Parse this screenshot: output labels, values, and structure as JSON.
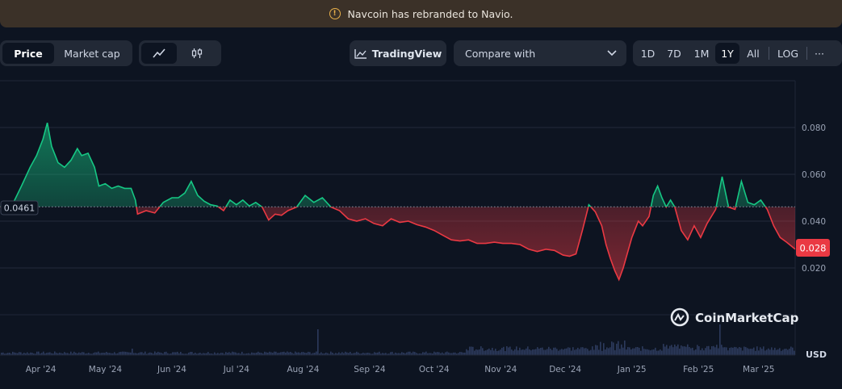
{
  "banner": {
    "text": "Navcoin has rebranded to Navio."
  },
  "toolbar": {
    "price_label": "Price",
    "marketcap_label": "Market cap",
    "tradingview_label": "TradingView",
    "compare_label": "Compare with",
    "ranges": [
      "1D",
      "7D",
      "1M",
      "1Y",
      "All"
    ],
    "active_range": "1Y",
    "log_label": "LOG",
    "more_label": "···"
  },
  "brand": {
    "watermark": "CoinMarketCap"
  },
  "colors": {
    "up": "#16c784",
    "down": "#ea3943",
    "background": "#0d1421",
    "volume": "#2c3a5c"
  },
  "chart_data": {
    "type": "line",
    "baseline": 0.0461,
    "baseline_label": "0.0461",
    "current": 0.028,
    "current_label": "0.028",
    "currency_label": "USD",
    "ylim": [
      0,
      0.1
    ],
    "yticks": [
      {
        "value": 0.02,
        "label": "0.020"
      },
      {
        "value": 0.04,
        "label": "0.040"
      },
      {
        "value": 0.06,
        "label": "0.060"
      },
      {
        "value": 0.08,
        "label": "0.080"
      }
    ],
    "xlim": [
      "2024-03-13",
      "2025-03-18"
    ],
    "xticks": [
      {
        "date": "2024-04-01",
        "label": "Apr '24"
      },
      {
        "date": "2024-05-01",
        "label": "May '24"
      },
      {
        "date": "2024-06-01",
        "label": "Jun '24"
      },
      {
        "date": "2024-07-01",
        "label": "Jul '24"
      },
      {
        "date": "2024-08-01",
        "label": "Aug '24"
      },
      {
        "date": "2024-09-01",
        "label": "Sep '24"
      },
      {
        "date": "2024-10-01",
        "label": "Oct '24"
      },
      {
        "date": "2024-11-01",
        "label": "Nov '24"
      },
      {
        "date": "2024-12-01",
        "label": "Dec '24"
      },
      {
        "date": "2025-01-01",
        "label": "Jan '25"
      },
      {
        "date": "2025-02-01",
        "label": "Feb '25"
      },
      {
        "date": "2025-03-01",
        "label": "Mar '25"
      }
    ],
    "price": [
      [
        "2024-03-13",
        0.0461
      ],
      [
        "2024-03-19",
        0.0475
      ],
      [
        "2024-03-23",
        0.055
      ],
      [
        "2024-03-27",
        0.063
      ],
      [
        "2024-03-30",
        0.068
      ],
      [
        "2024-04-02",
        0.075
      ],
      [
        "2024-04-04",
        0.082
      ],
      [
        "2024-04-06",
        0.072
      ],
      [
        "2024-04-09",
        0.065
      ],
      [
        "2024-04-12",
        0.063
      ],
      [
        "2024-04-15",
        0.066
      ],
      [
        "2024-04-18",
        0.071
      ],
      [
        "2024-04-20",
        0.068
      ],
      [
        "2024-04-23",
        0.069
      ],
      [
        "2024-04-26",
        0.063
      ],
      [
        "2024-04-28",
        0.055
      ],
      [
        "2024-05-01",
        0.056
      ],
      [
        "2024-05-04",
        0.054
      ],
      [
        "2024-05-07",
        0.055
      ],
      [
        "2024-05-10",
        0.054
      ],
      [
        "2024-05-13",
        0.054
      ],
      [
        "2024-05-15",
        0.049
      ],
      [
        "2024-05-16",
        0.043
      ],
      [
        "2024-05-20",
        0.0445
      ],
      [
        "2024-05-24",
        0.0435
      ],
      [
        "2024-05-28",
        0.048
      ],
      [
        "2024-06-01",
        0.05
      ],
      [
        "2024-06-04",
        0.05
      ],
      [
        "2024-06-07",
        0.052
      ],
      [
        "2024-06-10",
        0.057
      ],
      [
        "2024-06-13",
        0.051
      ],
      [
        "2024-06-16",
        0.0485
      ],
      [
        "2024-06-19",
        0.047
      ],
      [
        "2024-06-22",
        0.0465
      ],
      [
        "2024-06-25",
        0.0445
      ],
      [
        "2024-06-28",
        0.049
      ],
      [
        "2024-07-01",
        0.047
      ],
      [
        "2024-07-04",
        0.049
      ],
      [
        "2024-07-07",
        0.0465
      ],
      [
        "2024-07-10",
        0.048
      ],
      [
        "2024-07-13",
        0.046
      ],
      [
        "2024-07-16",
        0.0405
      ],
      [
        "2024-07-19",
        0.043
      ],
      [
        "2024-07-22",
        0.0425
      ],
      [
        "2024-07-25",
        0.0445
      ],
      [
        "2024-07-29",
        0.046
      ],
      [
        "2024-08-02",
        0.051
      ],
      [
        "2024-08-06",
        0.048
      ],
      [
        "2024-08-10",
        0.05
      ],
      [
        "2024-08-14",
        0.046
      ],
      [
        "2024-08-18",
        0.0445
      ],
      [
        "2024-08-22",
        0.041
      ],
      [
        "2024-08-26",
        0.04
      ],
      [
        "2024-08-30",
        0.041
      ],
      [
        "2024-09-03",
        0.039
      ],
      [
        "2024-09-07",
        0.038
      ],
      [
        "2024-09-11",
        0.041
      ],
      [
        "2024-09-15",
        0.0395
      ],
      [
        "2024-09-19",
        0.04
      ],
      [
        "2024-09-23",
        0.0385
      ],
      [
        "2024-09-27",
        0.0375
      ],
      [
        "2024-10-01",
        0.036
      ],
      [
        "2024-10-05",
        0.034
      ],
      [
        "2024-10-09",
        0.032
      ],
      [
        "2024-10-13",
        0.0315
      ],
      [
        "2024-10-17",
        0.032
      ],
      [
        "2024-10-21",
        0.0305
      ],
      [
        "2024-10-25",
        0.0305
      ],
      [
        "2024-10-29",
        0.031
      ],
      [
        "2024-11-02",
        0.0305
      ],
      [
        "2024-11-06",
        0.0305
      ],
      [
        "2024-11-10",
        0.03
      ],
      [
        "2024-11-14",
        0.028
      ],
      [
        "2024-11-18",
        0.027
      ],
      [
        "2024-11-22",
        0.028
      ],
      [
        "2024-11-26",
        0.0275
      ],
      [
        "2024-11-30",
        0.0255
      ],
      [
        "2024-12-03",
        0.025
      ],
      [
        "2024-12-06",
        0.026
      ],
      [
        "2024-12-09",
        0.036
      ],
      [
        "2024-12-12",
        0.047
      ],
      [
        "2024-12-15",
        0.044
      ],
      [
        "2024-12-18",
        0.038
      ],
      [
        "2024-12-20",
        0.03
      ],
      [
        "2024-12-22",
        0.024
      ],
      [
        "2024-12-24",
        0.019
      ],
      [
        "2024-12-26",
        0.015
      ],
      [
        "2024-12-28",
        0.02
      ],
      [
        "2025-01-01",
        0.033
      ],
      [
        "2025-01-04",
        0.04
      ],
      [
        "2025-01-06",
        0.038
      ],
      [
        "2025-01-09",
        0.042
      ],
      [
        "2025-01-11",
        0.051
      ],
      [
        "2025-01-13",
        0.055
      ],
      [
        "2025-01-15",
        0.05
      ],
      [
        "2025-01-17",
        0.046
      ],
      [
        "2025-01-19",
        0.049
      ],
      [
        "2025-01-21",
        0.046
      ],
      [
        "2025-01-24",
        0.036
      ],
      [
        "2025-01-27",
        0.032
      ],
      [
        "2025-01-30",
        0.038
      ],
      [
        "2025-02-02",
        0.033
      ],
      [
        "2025-02-05",
        0.039
      ],
      [
        "2025-02-09",
        0.045
      ],
      [
        "2025-02-12",
        0.059
      ],
      [
        "2025-02-15",
        0.046
      ],
      [
        "2025-02-18",
        0.045
      ],
      [
        "2025-02-21",
        0.057
      ],
      [
        "2025-02-24",
        0.048
      ],
      [
        "2025-02-27",
        0.047
      ],
      [
        "2025-03-02",
        0.049
      ],
      [
        "2025-03-05",
        0.045
      ],
      [
        "2025-03-08",
        0.038
      ],
      [
        "2025-03-11",
        0.033
      ],
      [
        "2025-03-14",
        0.031
      ],
      [
        "2025-03-18",
        0.028
      ]
    ]
  }
}
